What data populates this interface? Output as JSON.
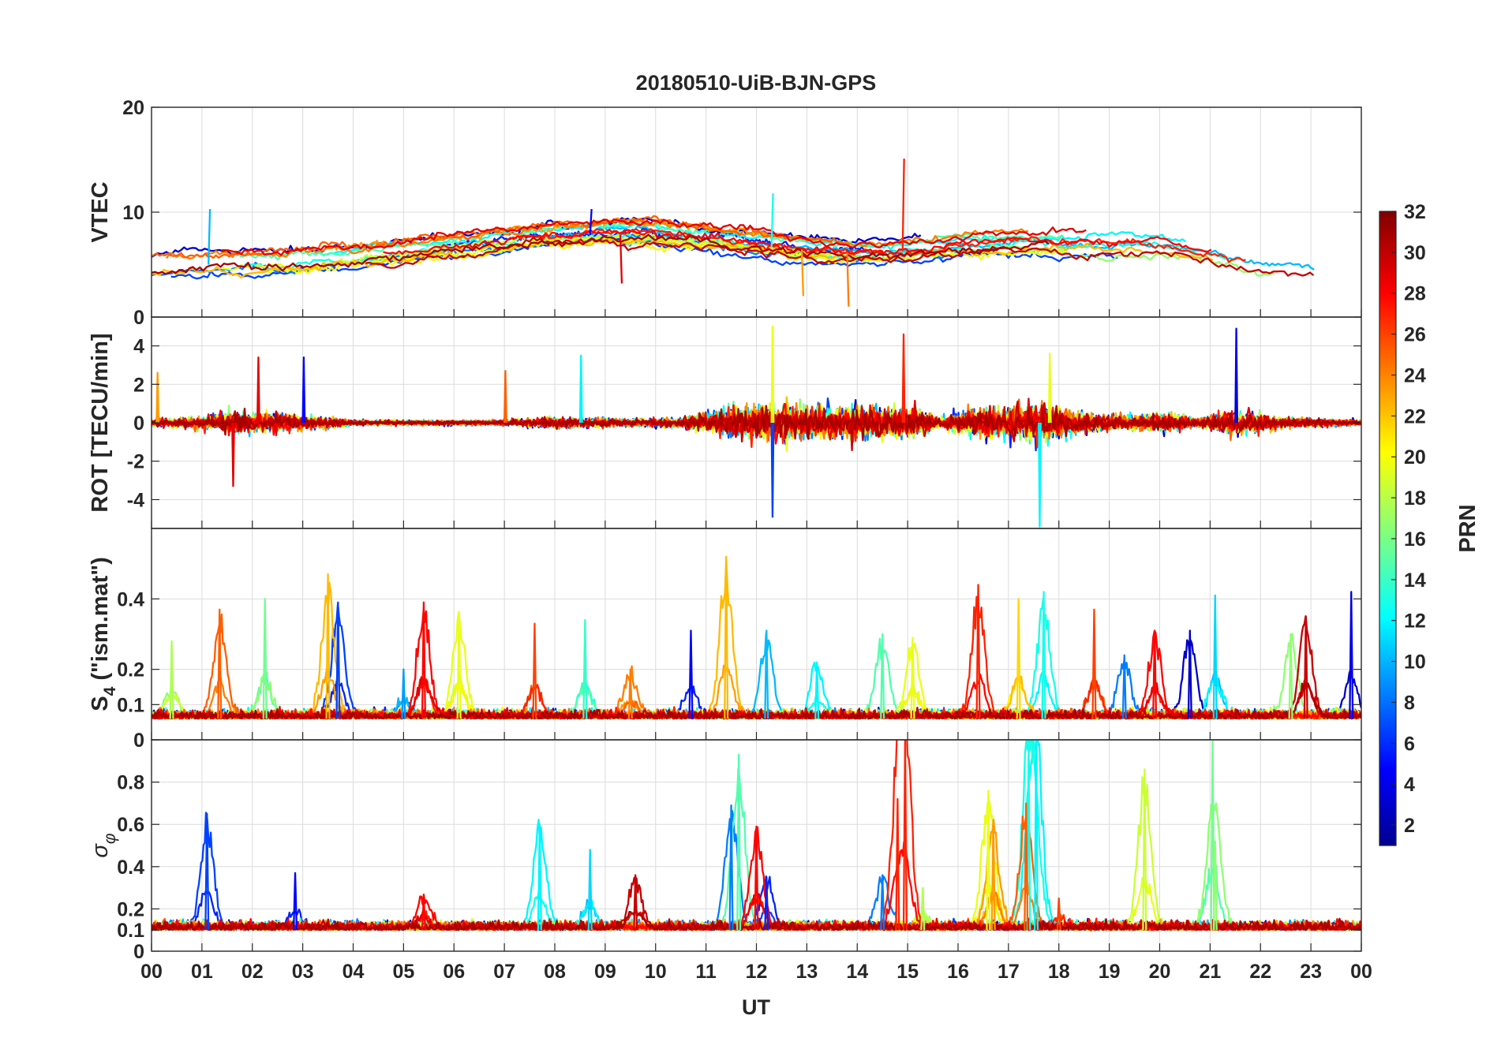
{
  "chart_data": {
    "type": "line",
    "title": "20180510-UiB-BJN-GPS",
    "xlabel": "UT",
    "x_ticks": [
      "00",
      "01",
      "02",
      "03",
      "04",
      "05",
      "06",
      "07",
      "08",
      "09",
      "10",
      "11",
      "12",
      "13",
      "14",
      "15",
      "16",
      "17",
      "18",
      "19",
      "20",
      "21",
      "22",
      "23",
      "00"
    ],
    "xlim_hours": [
      0,
      24
    ],
    "colorbar": {
      "label": "PRN",
      "range": [
        1,
        32
      ],
      "ticks": [
        "2",
        "4",
        "6",
        "8",
        "10",
        "12",
        "14",
        "16",
        "18",
        "20",
        "22",
        "24",
        "26",
        "28",
        "30",
        "32"
      ],
      "colormap": "jet"
    },
    "panels": [
      {
        "id": "vtec",
        "ylabel": "VTEC",
        "ylim": [
          0,
          20
        ],
        "y_ticks": [
          0,
          10,
          20
        ],
        "y_tick_labels": [
          "0",
          "10",
          "20"
        ],
        "baseline": [
          [
            0,
            4.6
          ],
          [
            1,
            5.0
          ],
          [
            2,
            5.0
          ],
          [
            3,
            5.2
          ],
          [
            4,
            5.6
          ],
          [
            5,
            6.1
          ],
          [
            6,
            6.7
          ],
          [
            7,
            7.1
          ],
          [
            8,
            7.6
          ],
          [
            9,
            7.9
          ],
          [
            10,
            7.8
          ],
          [
            11,
            7.3
          ],
          [
            12,
            6.8
          ],
          [
            13,
            6.4
          ],
          [
            14,
            6.1
          ],
          [
            15,
            6.3
          ],
          [
            16,
            6.7
          ],
          [
            17,
            7.0
          ],
          [
            18,
            6.8
          ],
          [
            19,
            6.7
          ],
          [
            20,
            6.7
          ],
          [
            21,
            5.9
          ],
          [
            22,
            5.0
          ],
          [
            23,
            4.6
          ],
          [
            24,
            4.4
          ]
        ],
        "noise": 0.55,
        "spikes": [
          [
            1.13,
            10.3,
            10
          ],
          [
            12.3,
            11.8,
            13
          ],
          [
            14.9,
            15.1,
            28
          ],
          [
            8.7,
            10.3,
            4
          ],
          [
            13.8,
            1.0,
            25
          ],
          [
            12.9,
            2.0,
            24
          ],
          [
            9.3,
            3.2,
            30
          ]
        ]
      },
      {
        "id": "rot",
        "ylabel": "ROT [TECU/min]",
        "ylim": [
          -5.5,
          5.5
        ],
        "y_ticks": [
          -4,
          -2,
          0,
          2,
          4
        ],
        "y_tick_labels": [
          "-4",
          "-2",
          "0",
          "2",
          "4"
        ],
        "activity": [
          [
            0,
            0.4
          ],
          [
            1,
            0.6
          ],
          [
            1.5,
            1.1
          ],
          [
            2.5,
            1.0
          ],
          [
            3.5,
            0.6
          ],
          [
            4,
            0.25
          ],
          [
            7,
            0.25
          ],
          [
            8,
            0.6
          ],
          [
            9.5,
            0.4
          ],
          [
            10.5,
            0.5
          ],
          [
            11.5,
            1.6
          ],
          [
            12.5,
            2.0
          ],
          [
            13.5,
            1.6
          ],
          [
            14.5,
            1.8
          ],
          [
            15.2,
            1.5
          ],
          [
            15.6,
            0.5
          ],
          [
            16.3,
            1.4
          ],
          [
            17.5,
            2.0
          ],
          [
            18.3,
            1.2
          ],
          [
            19.3,
            0.7
          ],
          [
            20,
            1.0
          ],
          [
            20.8,
            0.5
          ],
          [
            21.5,
            1.3
          ],
          [
            22.5,
            0.5
          ],
          [
            24,
            0.3
          ]
        ],
        "spikes": [
          [
            12.3,
            5.0,
            20
          ],
          [
            12.3,
            -4.9,
            6
          ],
          [
            17.6,
            -5.4,
            12
          ],
          [
            21.5,
            4.9,
            3
          ],
          [
            14.9,
            4.6,
            28
          ],
          [
            0.1,
            2.6,
            24
          ],
          [
            2.1,
            3.4,
            30
          ],
          [
            3.0,
            3.4,
            4
          ],
          [
            8.5,
            3.5,
            12
          ],
          [
            7.0,
            2.7,
            26
          ],
          [
            1.6,
            -3.3,
            30
          ],
          [
            17.8,
            3.6,
            20
          ]
        ]
      },
      {
        "id": "s4",
        "ylabel": "S4 (\"ism.mat\")",
        "ylabel_main": "S",
        "ylabel_sub": "4",
        "ylabel_rest": " (\"ism.mat\")",
        "ylim": [
          0,
          0.6
        ],
        "y_ticks": [
          0,
          0.1,
          0.2,
          0.4
        ],
        "y_tick_labels": [
          "0",
          "0.1",
          "0.2",
          "0.4"
        ],
        "baseline": 0.06,
        "events": [
          [
            0.4,
            0.28,
            18
          ],
          [
            1.35,
            0.37,
            26
          ],
          [
            2.25,
            0.4,
            16
          ],
          [
            3.5,
            0.47,
            23
          ],
          [
            3.7,
            0.39,
            6
          ],
          [
            5.4,
            0.39,
            29
          ],
          [
            6.1,
            0.36,
            20
          ],
          [
            7.6,
            0.33,
            27
          ],
          [
            8.6,
            0.34,
            14
          ],
          [
            11.4,
            0.52,
            23
          ],
          [
            10.7,
            0.31,
            4
          ],
          [
            12.2,
            0.31,
            10
          ],
          [
            14.5,
            0.3,
            15
          ],
          [
            15.1,
            0.29,
            20
          ],
          [
            16.4,
            0.44,
            28
          ],
          [
            17.2,
            0.4,
            22
          ],
          [
            17.7,
            0.42,
            13
          ],
          [
            18.7,
            0.37,
            27
          ],
          [
            19.9,
            0.31,
            29
          ],
          [
            20.6,
            0.31,
            2
          ],
          [
            21.1,
            0.41,
            11
          ],
          [
            22.6,
            0.3,
            17
          ],
          [
            22.9,
            0.35,
            31
          ],
          [
            23.8,
            0.42,
            3
          ],
          [
            5.0,
            0.2,
            9
          ],
          [
            9.5,
            0.2,
            25
          ],
          [
            13.2,
            0.22,
            12
          ],
          [
            19.3,
            0.24,
            8
          ]
        ]
      },
      {
        "id": "sigma_phi",
        "ylabel": "σ φ",
        "ylabel_main": "σ",
        "ylabel_sub": "φ",
        "ylim": [
          0,
          1
        ],
        "y_ticks": [
          0,
          0.1,
          0.2,
          0.4,
          0.6,
          0.8
        ],
        "y_tick_labels": [
          "0",
          "0.1",
          "0.2",
          "0.4",
          "0.6",
          "0.8"
        ],
        "baseline": 0.1,
        "events": [
          [
            1.1,
            0.65,
            6
          ],
          [
            2.85,
            0.37,
            4
          ],
          [
            7.7,
            0.6,
            12
          ],
          [
            8.7,
            0.48,
            11
          ],
          [
            11.5,
            0.69,
            8
          ],
          [
            11.65,
            0.93,
            15
          ],
          [
            12.0,
            0.59,
            29
          ],
          [
            14.5,
            0.36,
            8
          ],
          [
            14.8,
            0.72,
            28
          ],
          [
            14.95,
            1.0,
            28
          ],
          [
            16.6,
            0.76,
            20
          ],
          [
            16.7,
            0.62,
            24
          ],
          [
            17.4,
            1.0,
            13
          ],
          [
            17.55,
            1.0,
            12
          ],
          [
            17.35,
            0.7,
            26
          ],
          [
            19.7,
            0.86,
            19
          ],
          [
            21.05,
            1.0,
            16
          ],
          [
            21.1,
            0.52,
            17
          ],
          [
            12.2,
            0.35,
            5
          ],
          [
            15.3,
            0.3,
            18
          ],
          [
            18.0,
            0.25,
            27
          ],
          [
            5.4,
            0.26,
            29
          ],
          [
            9.6,
            0.36,
            31
          ]
        ]
      }
    ]
  }
}
